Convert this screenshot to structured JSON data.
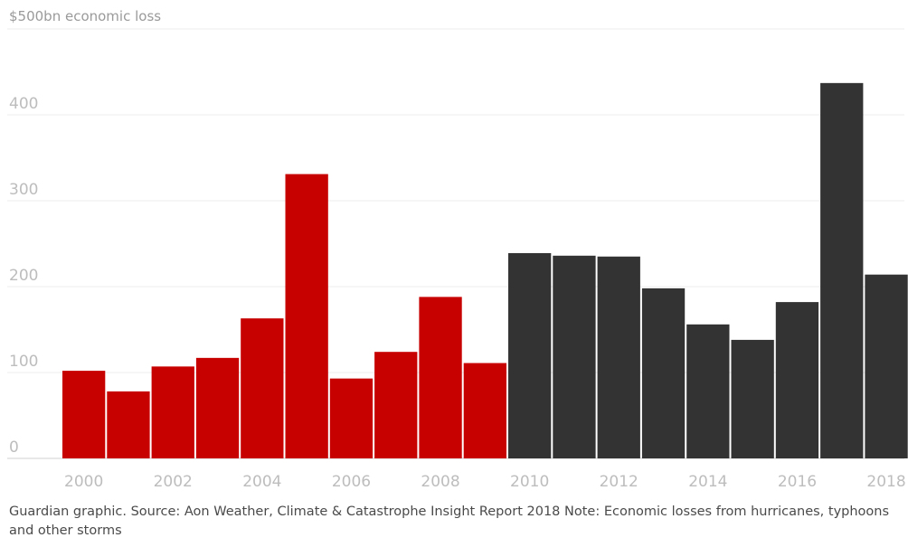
{
  "chart_data": {
    "type": "bar",
    "ylabel": "$500bn economic loss",
    "ylim": [
      0,
      500
    ],
    "yticks": [
      "0",
      "100",
      "200",
      "300",
      "400"
    ],
    "x_tick_labels": [
      "2000",
      "2002",
      "2004",
      "2006",
      "2008",
      "2010",
      "2012",
      "2014",
      "2016",
      "2018"
    ],
    "categories": [
      "2000",
      "2001",
      "2002",
      "2003",
      "2004",
      "2005",
      "2006",
      "2007",
      "2008",
      "2009",
      "2010",
      "2011",
      "2012",
      "2013",
      "2014",
      "2015",
      "2016",
      "2017",
      "2018"
    ],
    "values": [
      102,
      78,
      107,
      117,
      163,
      331,
      93,
      124,
      188,
      111,
      239,
      236,
      235,
      198,
      156,
      138,
      182,
      437,
      214
    ],
    "colors": {
      "highlight": "#c70000",
      "default": "#333333"
    },
    "highlight_years": [
      "2000",
      "2001",
      "2002",
      "2003",
      "2004",
      "2005",
      "2006",
      "2007",
      "2008",
      "2009"
    ],
    "grid": true
  },
  "footer": {
    "source": "Guardian graphic. Source: Aon Weather, Climate & Catastrophe Insight Report 2018 Note: Economic losses from hurricanes, typhoons and other storms"
  }
}
